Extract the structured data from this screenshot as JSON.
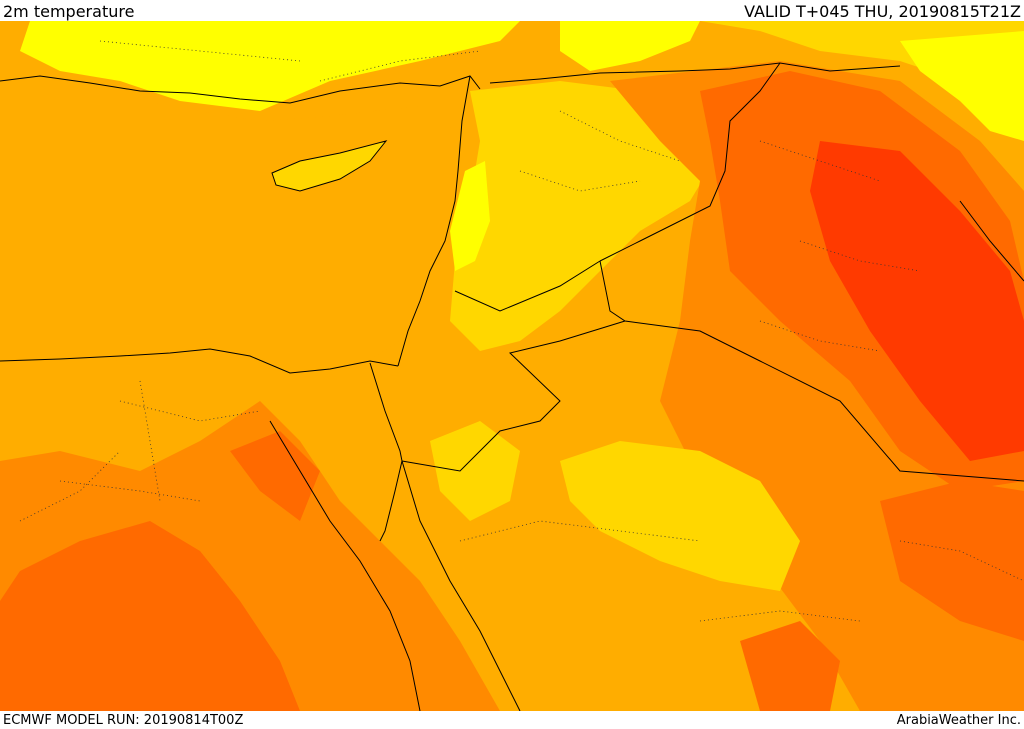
{
  "header": {
    "title": "2m temperature",
    "valid": "VALID T+045 THU, 20190815T21Z"
  },
  "footer": {
    "model_run": "ECMWF MODEL RUN: 20190814T00Z",
    "credit": "ArabiaWeather Inc."
  },
  "colors": {
    "background": "#ffffff",
    "light_yellow": "#ffff00",
    "yellow": "#ffd700",
    "light_orange": "#ffad00",
    "orange": "#ff8a00",
    "dark_orange": "#ff6a00",
    "red_orange": "#ff3a00",
    "boundary_line": "#000000"
  }
}
